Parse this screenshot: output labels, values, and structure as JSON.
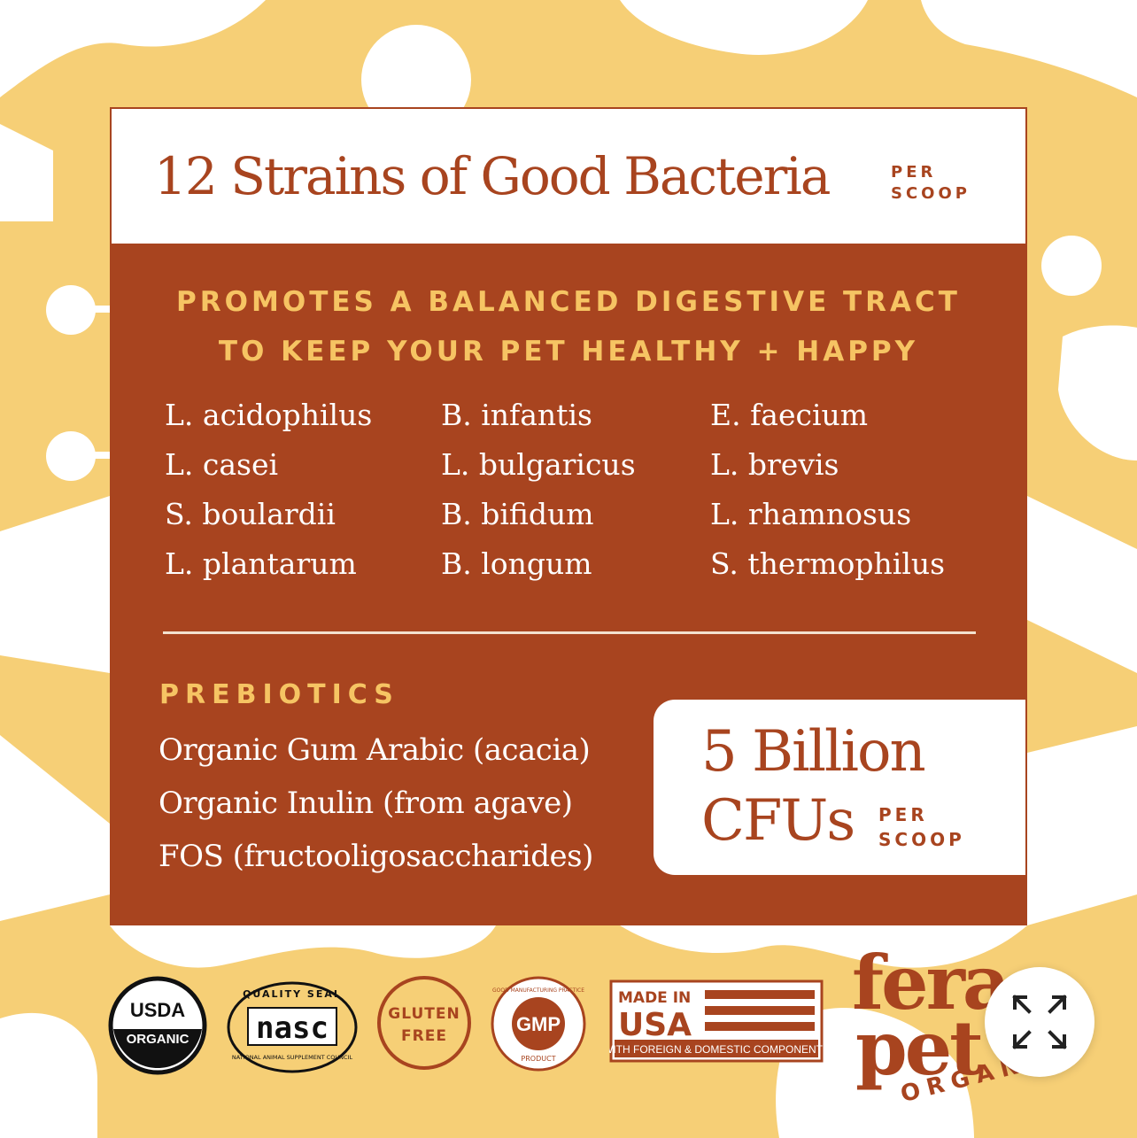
{
  "card": {
    "title": "12 Strains of Good Bacteria",
    "title_per": [
      "PER",
      "SCOOP"
    ],
    "headline": [
      "PROMOTES A BALANCED DIGESTIVE TRACT",
      "TO KEEP YOUR PET HEALTHY + HAPPY"
    ],
    "strains": [
      [
        "L. acidophilus",
        "L. casei",
        "S. boulardii",
        "L. plantarum"
      ],
      [
        "B. infantis",
        "L. bulgaricus",
        "B. bifidum",
        "B. longum"
      ],
      [
        "E. faecium",
        "L. brevis",
        "L. rhamnosus",
        "S. thermophilus"
      ]
    ],
    "prebiotics_heading": "PREBIOTICS",
    "prebiotics": [
      "Organic Gum Arabic (acacia)",
      "Organic Inulin (from agave)",
      "FOS (fructooligosaccharides)"
    ],
    "cfu_line1": "5 Billion",
    "cfu_line2": "CFUs",
    "cfu_per": [
      "PER",
      "SCOOP"
    ]
  },
  "badges": {
    "usda": [
      "USDA",
      "ORGANIC"
    ],
    "nasc_top": "QUALITY SEAL",
    "nasc_logo": "nasc",
    "nasc_bottom": "NATIONAL ANIMAL SUPPLEMENT COUNCIL",
    "gluten": [
      "GLUTEN",
      "FREE"
    ],
    "gmp_ring": "GOOD MANUFACTURING PRACTICE",
    "gmp_center": "GMP",
    "gmp_bottom": "PRODUCT",
    "usa": [
      "MADE IN",
      "USA"
    ],
    "usa_sub": "WITH FOREIGN & DOMESTIC COMPONENTS"
  },
  "brand": {
    "line1": "fera",
    "line2": "pet",
    "line3": "ORGANI"
  },
  "colors": {
    "rust": "#a8441f",
    "yellow": "#f6cf76",
    "gold_text": "#f6c463",
    "white": "#ffffff"
  },
  "icons": {
    "expand": "expand-arrows-icon"
  }
}
